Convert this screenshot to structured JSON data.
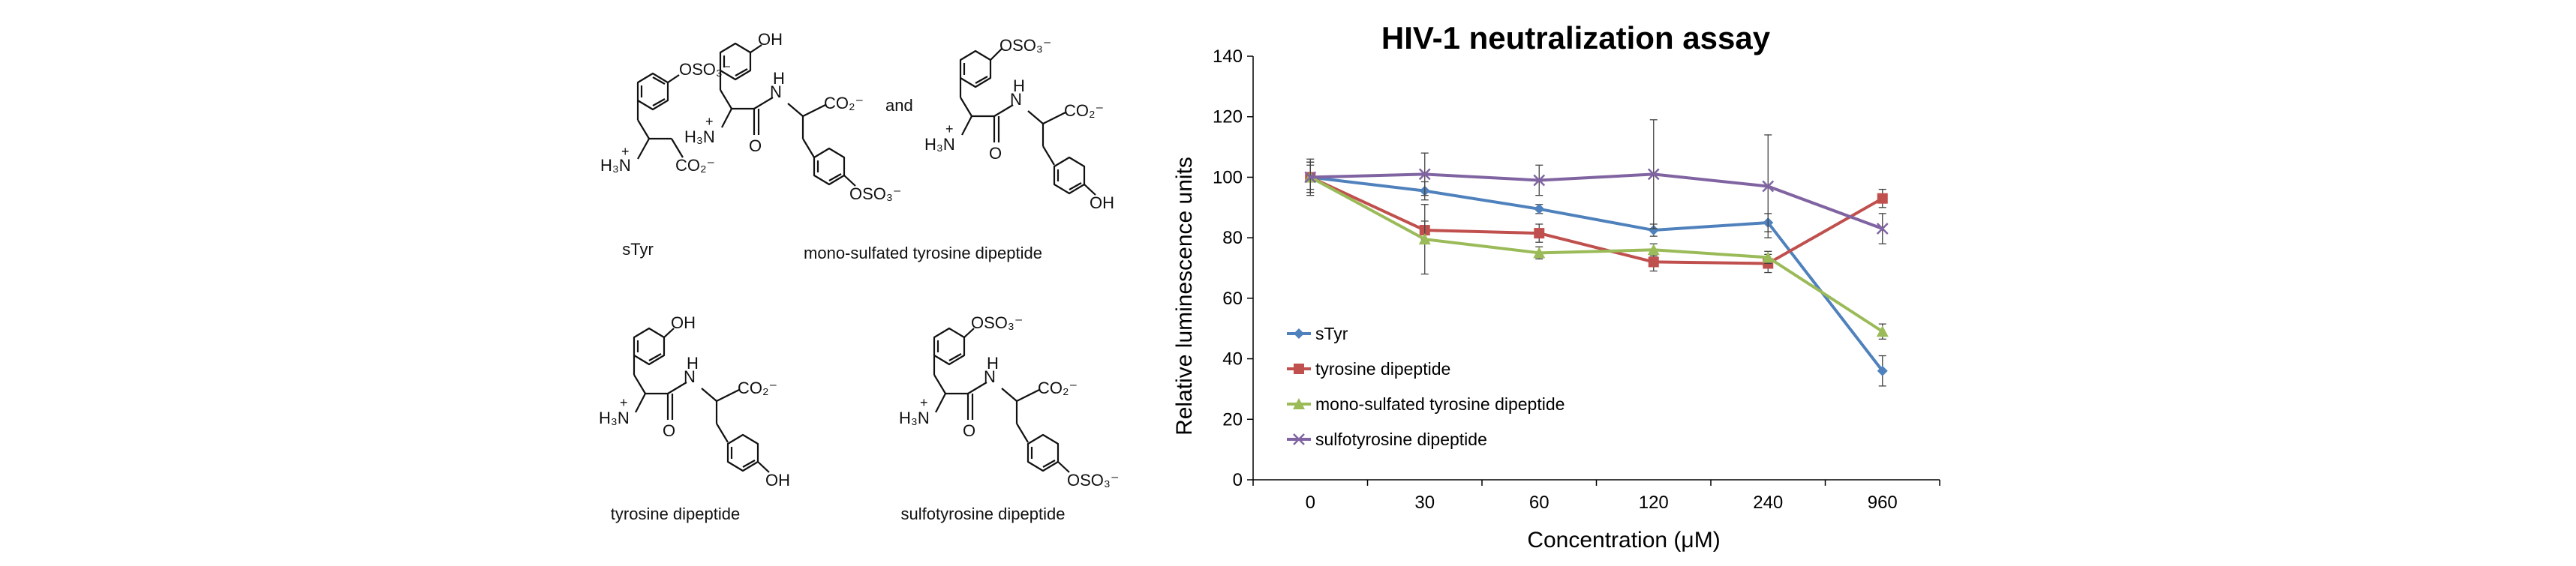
{
  "structures": {
    "labels": {
      "styr": "sTyr",
      "mono": "mono-sulfated tyrosine dipeptide",
      "tyr_dipeptide": "tyrosine dipeptide",
      "sulfotyr_dipeptide": "sulfotyrosine dipeptide"
    },
    "and_word": "and",
    "groups": {
      "oso3": "OSO₃⁻",
      "oh": "OH",
      "nh3": "H₃N",
      "plus": "+",
      "co2": "CO₂⁻",
      "o": "O",
      "h": "H",
      "n": "N"
    }
  },
  "chart_data": {
    "type": "line",
    "title": "HIV-1 neutralization assay",
    "xlabel": "Concentration (μM)",
    "ylabel": "Relative luminescence units",
    "categories": [
      "0",
      "30",
      "60",
      "120",
      "240",
      "960"
    ],
    "ylim": [
      0,
      140
    ],
    "yticks": [
      0,
      20,
      40,
      60,
      80,
      100,
      120,
      140
    ],
    "grid": false,
    "legend_position": "bottom-left",
    "series": [
      {
        "name": "sTyr",
        "color": "#4f81bd",
        "marker": "diamond",
        "values": [
          100,
          95.5,
          89.5,
          82.5,
          85,
          36
        ],
        "errors": [
          4,
          3,
          1.5,
          2,
          3,
          5
        ]
      },
      {
        "name": "tyrosine dipeptide",
        "color": "#c0504d",
        "marker": "square",
        "values": [
          100,
          82.5,
          81.5,
          72,
          71.5,
          93
        ],
        "errors": [
          5,
          3,
          3,
          3,
          3,
          3
        ]
      },
      {
        "name": "mono-sulfated tyrosine dipeptide",
        "color": "#9bbb59",
        "marker": "triangle",
        "values": [
          100,
          79.5,
          75,
          76,
          73.5,
          49
        ],
        "errors": [
          5,
          11.5,
          2,
          2,
          2,
          2.5
        ]
      },
      {
        "name": "sulfotyrosine dipeptide",
        "color": "#8064a2",
        "marker": "x",
        "values": [
          100,
          101,
          99,
          101,
          97,
          83
        ],
        "errors": [
          6,
          7,
          5,
          18,
          17,
          5
        ]
      }
    ]
  }
}
